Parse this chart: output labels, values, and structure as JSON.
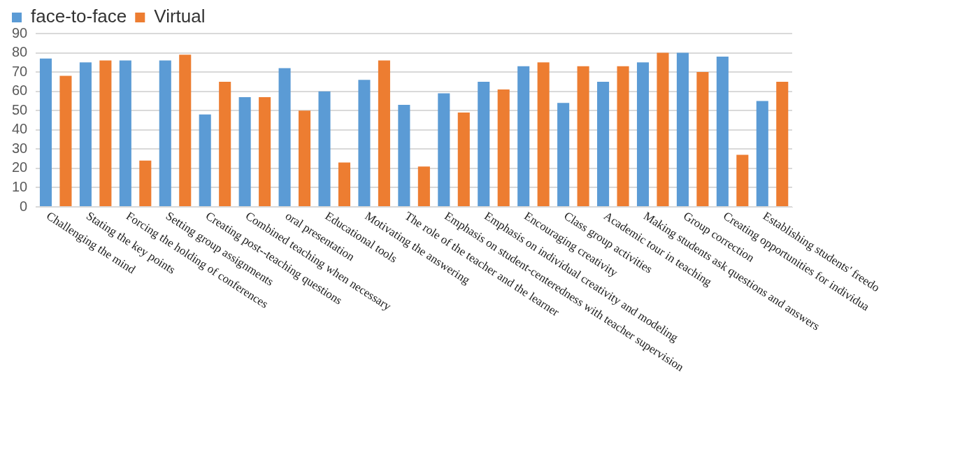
{
  "chart_data": {
    "type": "bar",
    "categories": [
      "Challenging the mind",
      "Stating the key points",
      "Forcing the holding of conferences",
      "Setting group assignments",
      "Creating post--teaching questions",
      "Combined teaching when necessary",
      "oral presentation",
      "Educational tools",
      "Motivating the answering",
      "The role of the teacher and the learner",
      "Emphasis on student-centeredness with teacher supervision",
      "Emphasis on individual creativity and modeling",
      "Encouraging creativity",
      "Class group activities",
      "Academic tour in teaching",
      "Making students ask questions and answers",
      "Group correction",
      "Creating opportunities for individua",
      "Establishing students' freedo"
    ],
    "series": [
      {
        "name": "face-to-face",
        "color": "#5b9bd5",
        "values": [
          77,
          75,
          76,
          76,
          48,
          57,
          72,
          60,
          66,
          53,
          59,
          65,
          73,
          54,
          65,
          75,
          80,
          78,
          55
        ]
      },
      {
        "name": "Virtual",
        "color": "#ed7d31",
        "values": [
          68,
          76,
          24,
          79,
          65,
          57,
          50,
          23,
          76,
          21,
          49,
          61,
          75,
          73,
          73,
          80,
          70,
          27,
          65
        ]
      }
    ],
    "ylim": [
      0,
      90
    ],
    "yticks": [
      0,
      10,
      20,
      30,
      40,
      50,
      60,
      70,
      80,
      90
    ],
    "grid": "y",
    "legend": "top"
  }
}
